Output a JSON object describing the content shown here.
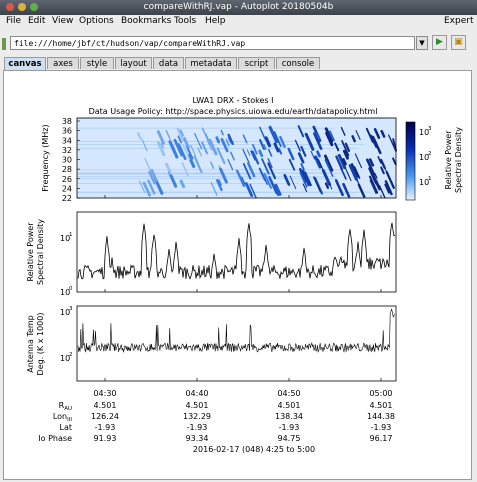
{
  "window": {
    "title": "compareWithRJ.vap - Autoplot 20180504b"
  },
  "menu": {
    "file": "File",
    "edit": "Edit",
    "view": "View",
    "options": "Options",
    "bookmarks": "Bookmarks",
    "tools": "Tools",
    "help": "Help",
    "expert": "Expert"
  },
  "address": {
    "url": "file:///home/jbf/ct/hudson/vap/compareWithRJ.vap"
  },
  "tabs": [
    "canvas",
    "axes",
    "style",
    "layout",
    "data",
    "metadata",
    "script",
    "console"
  ],
  "plot": {
    "title_line1": "LWA1 DRX - Stokes I",
    "title_line2": "Data Usage Policy: http://space.physics.uiowa.edu/earth/datapolicy.html",
    "panel1_ylabel": "Frequency (MHz)",
    "panel1_yticks": [
      "38",
      "36",
      "34",
      "32",
      "30",
      "28",
      "26",
      "24",
      "22"
    ],
    "colorbar_label_1": "Relative Power",
    "colorbar_label_2": "Spectral Density",
    "colorbar_ticks": [
      "10",
      "10",
      "10"
    ],
    "colorbar_exps": [
      "3",
      "2",
      "1"
    ],
    "panel2_ylabel_1": "Relative Power",
    "panel2_ylabel_2": "Spectral Density",
    "panel2_yticks": [
      "10",
      "10"
    ],
    "panel2_yexps": [
      "1",
      "0"
    ],
    "panel3_ylabel_1": "Antenna Temp",
    "panel3_ylabel_2": "Deg. (K x 1000)",
    "panel3_yticks": [
      "10",
      "10"
    ],
    "panel3_yexps": [
      "3",
      "2"
    ],
    "xticks": [
      "04:30",
      "04:40",
      "04:50",
      "05:00"
    ],
    "row_labels": [
      "R",
      "Lon",
      "Lat",
      "Io Phase"
    ],
    "row_subs": [
      "AU",
      "III",
      "",
      ""
    ],
    "r_values": [
      "4.501",
      "4.501",
      "4.501",
      "4.501"
    ],
    "lon_values": [
      "126.24",
      "132.29",
      "138.34",
      "144.38"
    ],
    "lat_values": [
      "-1.93",
      "-1.93",
      "-1.93",
      "-1.93"
    ],
    "io_values": [
      "91.93",
      "93.34",
      "94.75",
      "96.17"
    ],
    "date_range": "2016-02-17 (048) 4:25 to 5:00"
  },
  "colors": {
    "titlebar": "#4a5058",
    "spectro_dark": "#0a1a7a",
    "spectro_light": "#cfe3ff",
    "accent_tab": "#cfe0f3"
  }
}
